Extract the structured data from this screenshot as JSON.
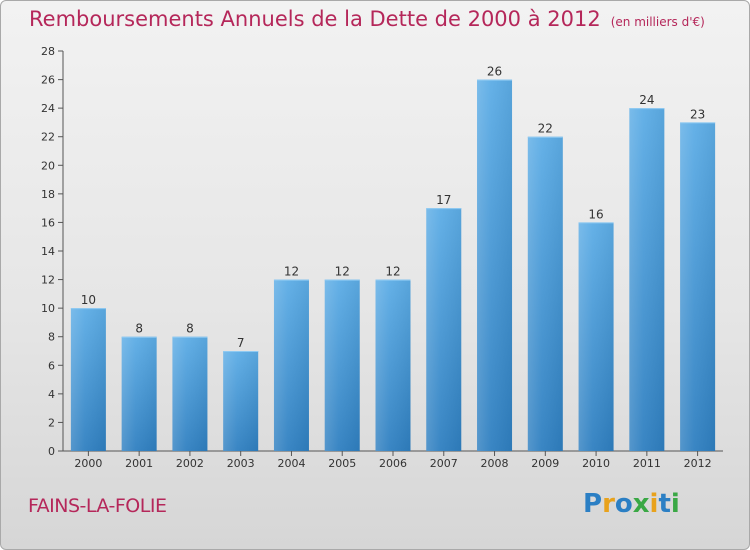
{
  "title": "Remboursements Annuels de la Dette de 2000 à 2012",
  "unit": "(en milliers d'€)",
  "commune": "FAINS-LA-FOLIE",
  "logo": {
    "text": "Proxiti",
    "colors": [
      "#2b7fc4",
      "#e8a21c",
      "#2b7fc4",
      "#3aa845",
      "#e8a21c",
      "#2b7fc4",
      "#3aa845"
    ]
  },
  "colors": {
    "bar_light": "#5dade6",
    "bar_dark": "#2f7fc0",
    "title": "#b5275a"
  },
  "chart_data": {
    "type": "bar",
    "categories": [
      "2000",
      "2001",
      "2002",
      "2003",
      "2004",
      "2005",
      "2006",
      "2007",
      "2008",
      "2009",
      "2010",
      "2011",
      "2012"
    ],
    "values": [
      10,
      8,
      8,
      7,
      12,
      12,
      12,
      17,
      26,
      22,
      16,
      24,
      23
    ],
    "ylim": [
      0,
      28
    ],
    "yticks": [
      0,
      2,
      4,
      6,
      8,
      10,
      12,
      14,
      16,
      18,
      20,
      22,
      24,
      26,
      28
    ],
    "grid": false,
    "data_labels": true
  }
}
